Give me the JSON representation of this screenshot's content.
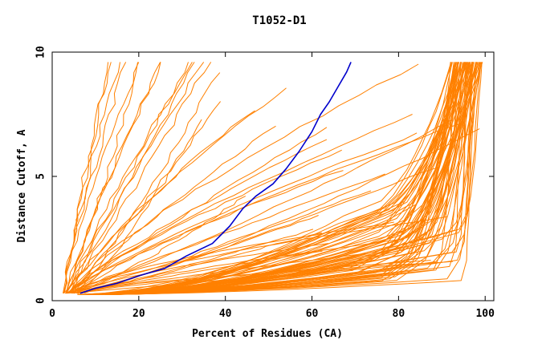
{
  "chart_data": {
    "type": "line",
    "title": "T1052-D1",
    "xlabel": "Percent of Residues (CA)",
    "ylabel": "Distance Cutoff, A",
    "xlim": [
      0,
      102
    ],
    "ylim": [
      0,
      10
    ],
    "xticks": [
      0,
      20,
      40,
      60,
      80,
      100
    ],
    "yticks": [
      0,
      5,
      10
    ],
    "xtick_labels": [
      "0",
      "20",
      "40",
      "60",
      "80",
      "100"
    ],
    "ytick_labels": [
      "0",
      "5",
      "10"
    ],
    "grid": false,
    "colors": {
      "background": "#ffffff",
      "models": "#ff8000",
      "highlight": "#0000cc",
      "axis": "#000000"
    },
    "highlight_series": {
      "x": [
        6.5,
        10,
        15,
        20,
        26,
        31,
        37,
        41,
        44,
        47,
        51,
        54,
        57,
        60,
        62,
        64,
        66,
        68,
        69
      ],
      "y": [
        0.3,
        0.5,
        0.7,
        1.0,
        1.3,
        1.8,
        2.3,
        3.0,
        3.7,
        4.2,
        4.7,
        5.3,
        6.0,
        6.8,
        7.5,
        8.0,
        8.6,
        9.2,
        9.6
      ]
    },
    "series_groups": [
      {
        "family": "steep",
        "count": 13,
        "x0": [
          2.5,
          3.5
        ],
        "x_end": [
          10,
          37
        ],
        "y_start": 0.3,
        "y_end": 9.6,
        "shape": [
          0.85,
          1.2
        ]
      },
      {
        "family": "diagonal",
        "count": 20,
        "x0": [
          3,
          6
        ],
        "x_end": [
          30,
          100
        ],
        "y_start": 0.3,
        "y_end": [
          4,
          9.6
        ],
        "shape": [
          0.8,
          1.3
        ]
      },
      {
        "family": "shallow",
        "count": 12,
        "x0": [
          3,
          8
        ],
        "x_end": [
          60,
          95
        ],
        "y_start": 0.3,
        "y_end": [
          1.5,
          3.5
        ],
        "shape": [
          0.9,
          1.5
        ]
      },
      {
        "family": "saturating",
        "count": 70,
        "x0": [
          6,
          15
        ],
        "knee_x": [
          65,
          95
        ],
        "knee_y": [
          0.8,
          3.5
        ],
        "x_end": [
          92,
          99.5
        ],
        "y_start": 0.25,
        "y_end": 9.6
      }
    ]
  }
}
